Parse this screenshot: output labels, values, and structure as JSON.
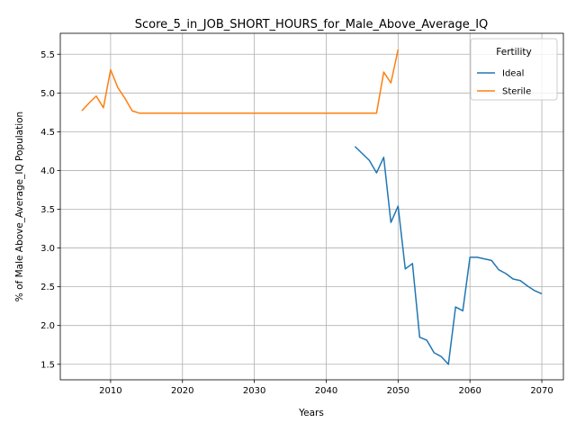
{
  "chart_data": {
    "type": "line",
    "title": "Score_5_in_JOB_SHORT_HOURS_for_Male_Above_Average_IQ",
    "xlabel": "Years",
    "ylabel": "% of Male Above_Average_IQ Population",
    "xlim": [
      2003,
      2073
    ],
    "ylim": [
      1.3,
      5.77
    ],
    "xticks": [
      2010,
      2020,
      2030,
      2040,
      2050,
      2060,
      2070
    ],
    "yticks": [
      1.5,
      2.0,
      2.5,
      3.0,
      3.5,
      4.0,
      4.5,
      5.0,
      5.5
    ],
    "xtick_labels": [
      "2010",
      "2020",
      "2030",
      "2040",
      "2050",
      "2060",
      "2070"
    ],
    "ytick_labels": [
      "1.5",
      "2.0",
      "2.5",
      "3.0",
      "3.5",
      "4.0",
      "4.5",
      "5.0",
      "5.5"
    ],
    "grid": true,
    "legend": {
      "title": "Fertility",
      "placement": "top-right"
    },
    "series": [
      {
        "name": "Ideal",
        "color": "#1f77b4",
        "x": [
          2044,
          2045,
          2046,
          2047,
          2048,
          2049,
          2050,
          2051,
          2052,
          2053,
          2054,
          2055,
          2056,
          2057,
          2058,
          2059,
          2060,
          2061,
          2062,
          2063,
          2064,
          2065,
          2066,
          2067,
          2068,
          2069,
          2070
        ],
        "y": [
          4.31,
          4.22,
          4.13,
          3.97,
          4.17,
          3.33,
          3.54,
          2.73,
          2.8,
          1.85,
          1.81,
          1.65,
          1.6,
          1.5,
          2.24,
          2.19,
          2.88,
          2.88,
          2.86,
          2.84,
          2.72,
          2.67,
          2.6,
          2.58,
          2.51,
          2.45,
          2.41
        ]
      },
      {
        "name": "Sterile",
        "color": "#ff7f0e",
        "x": [
          2006,
          2007,
          2008,
          2009,
          2010,
          2011,
          2012,
          2013,
          2014,
          2015,
          2020,
          2025,
          2030,
          2035,
          2040,
          2045,
          2046,
          2047,
          2048,
          2049,
          2050
        ],
        "y": [
          4.77,
          4.87,
          4.96,
          4.81,
          5.3,
          5.07,
          4.93,
          4.77,
          4.74,
          4.74,
          4.74,
          4.74,
          4.74,
          4.74,
          4.74,
          4.74,
          4.74,
          4.74,
          5.27,
          5.13,
          5.56
        ]
      }
    ]
  }
}
